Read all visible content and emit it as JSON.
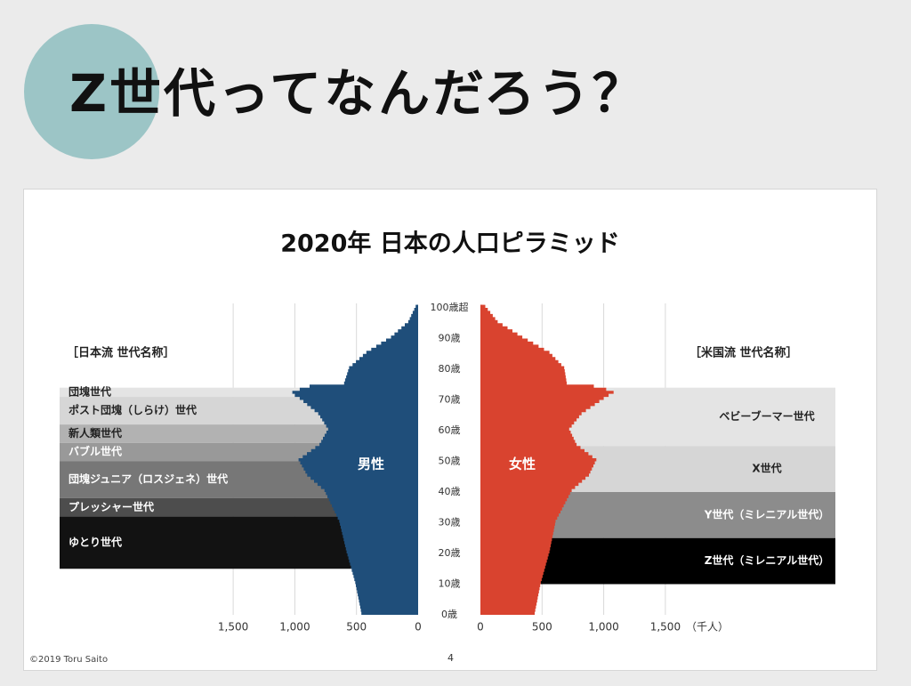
{
  "slide": {
    "title": "Z世代ってなんだろう？",
    "copyright": "©2019 Toru Saito",
    "page_number": "4"
  },
  "colors": {
    "male": "#1f4e7a",
    "female": "#d9432f",
    "accent_circle": "#9cc5c6"
  },
  "chart_data": {
    "type": "bar",
    "orientation": "population-pyramid",
    "title": "2020年 日本の人口ピラミッド",
    "unit_label": "（千人）",
    "y_tick_labels": [
      "100歳超",
      "90歳",
      "80歳",
      "70歳",
      "60歳",
      "50歳",
      "40歳",
      "30歳",
      "20歳",
      "10歳",
      "0歳"
    ],
    "x_ticks_male": [
      "1,500",
      "1,000",
      "500",
      "0"
    ],
    "x_ticks_female": [
      "0",
      "500",
      "1,000",
      "1,500"
    ],
    "xlim": [
      0,
      1500
    ],
    "grid": true,
    "series": [
      {
        "name": "男性",
        "ages": [
          0,
          10,
          20,
          30,
          40,
          45,
          50,
          55,
          60,
          65,
          70,
          71,
          72,
          73,
          74,
          75,
          80,
          85,
          90,
          95,
          100
        ],
        "values": [
          460,
          510,
          580,
          640,
          760,
          900,
          970,
          800,
          730,
          810,
          960,
          1000,
          1020,
          960,
          880,
          600,
          560,
          420,
          220,
          80,
          20
        ]
      },
      {
        "name": "女性",
        "ages": [
          0,
          10,
          20,
          30,
          40,
          45,
          50,
          55,
          60,
          65,
          70,
          71,
          72,
          73,
          74,
          75,
          80,
          85,
          90,
          95,
          100
        ],
        "values": [
          440,
          490,
          560,
          610,
          740,
          880,
          940,
          780,
          720,
          820,
          1000,
          1040,
          1080,
          1020,
          920,
          700,
          680,
          560,
          340,
          140,
          40
        ]
      }
    ],
    "japanese_heading": "［日本流 世代名称］",
    "japanese_generations": [
      {
        "name": "団塊世代",
        "age_from": 71,
        "age_to": 74,
        "shade": "#e4e4e4"
      },
      {
        "name": "ポスト団塊（しらけ）世代",
        "age_from": 62,
        "age_to": 71,
        "shade": "#d6d6d6"
      },
      {
        "name": "新人類世代",
        "age_from": 56,
        "age_to": 62,
        "shade": "#b2b2b2"
      },
      {
        "name": "バブル世代",
        "age_from": 50,
        "age_to": 56,
        "shade": "#999999"
      },
      {
        "name": "団塊ジュニア（ロスジェネ）世代",
        "age_from": 38,
        "age_to": 50,
        "shade": "#777777"
      },
      {
        "name": "プレッシャー世代",
        "age_from": 32,
        "age_to": 38,
        "shade": "#4d4d4d"
      },
      {
        "name": "ゆとり世代",
        "age_from": 15,
        "age_to": 32,
        "shade": "#121212"
      }
    ],
    "us_heading": "［米国流 世代名称］",
    "us_generations": [
      {
        "name": "ベビーブーマー世代",
        "age_from": 55,
        "age_to": 74,
        "shade": "#e4e4e4"
      },
      {
        "name": "X世代",
        "age_from": 40,
        "age_to": 55,
        "shade": "#d6d6d6"
      },
      {
        "name": "Y世代（ミレニアル世代）",
        "age_from": 25,
        "age_to": 40,
        "shade": "#8c8c8c"
      },
      {
        "name": "Z世代（ミレニアル世代）",
        "age_from": 10,
        "age_to": 25,
        "shade": "#000000"
      }
    ]
  }
}
